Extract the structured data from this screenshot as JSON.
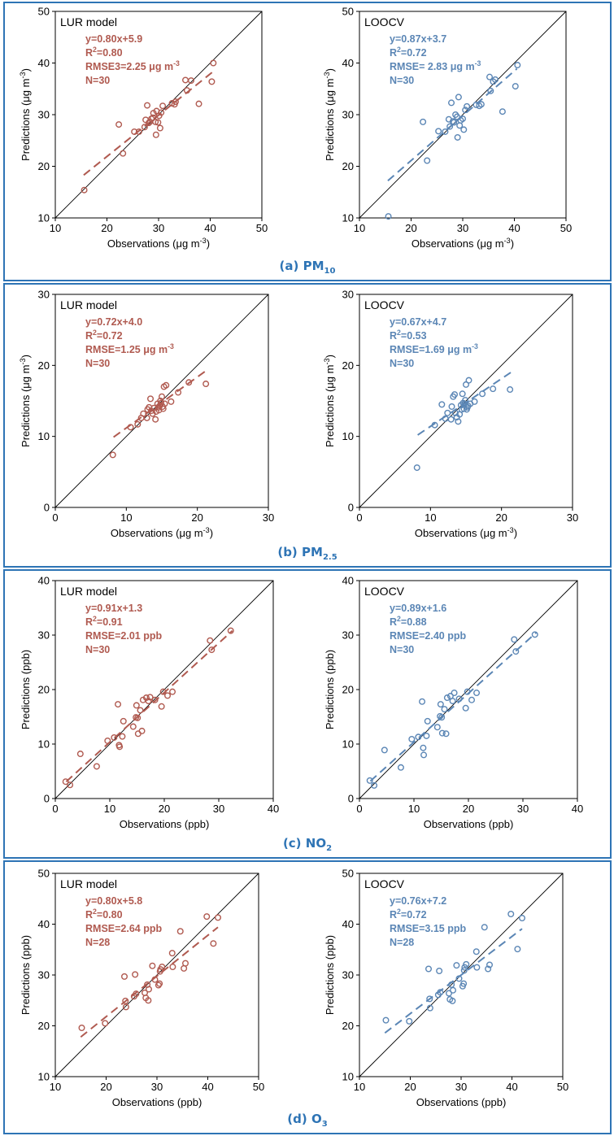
{
  "colors": {
    "border": "#2e74b5",
    "lur": "#b05a50",
    "loocv": "#5b86b5",
    "axis": "#000000"
  },
  "panels": [
    {
      "label_prefix": "(a) PM",
      "label_sub": "10"
    },
    {
      "label_prefix": "(b) PM",
      "label_sub": "2.5"
    },
    {
      "label_prefix": "(c) NO",
      "label_sub": "2"
    },
    {
      "label_prefix": "(d) O",
      "label_sub": "3"
    }
  ],
  "chart_data": [
    {
      "type": "scatter",
      "panel": 0,
      "title": "LUR model",
      "series_color": "lur",
      "xlabel": "Observations (μg m-3)",
      "ylabel": "Predictions (μg m-3)",
      "xlim": [
        10,
        50
      ],
      "ylim": [
        10,
        50
      ],
      "ticks": [
        10,
        20,
        30,
        40,
        50
      ],
      "stats": [
        "y=0.80x+5.9",
        "R2=0.80",
        "RMSE3=2.25 μg m-3",
        "N=30"
      ],
      "fit": {
        "x": [
          15.5,
          40.5
        ],
        "y": [
          18.3,
          38.3
        ]
      },
      "points": [
        [
          15.6,
          15.4
        ],
        [
          22.3,
          28.1
        ],
        [
          23.1,
          22.5
        ],
        [
          25.3,
          26.7
        ],
        [
          26.2,
          26.7
        ],
        [
          27.3,
          27.6
        ],
        [
          27.5,
          29.0
        ],
        [
          27.8,
          31.8
        ],
        [
          28.1,
          28.4
        ],
        [
          28.3,
          28.6
        ],
        [
          28.6,
          29.2
        ],
        [
          28.9,
          29.4
        ],
        [
          29.0,
          30.3
        ],
        [
          29.4,
          28.6
        ],
        [
          29.5,
          26.1
        ],
        [
          29.6,
          30.7
        ],
        [
          29.9,
          28.5
        ],
        [
          30.1,
          29.8
        ],
        [
          30.3,
          27.4
        ],
        [
          30.5,
          30.4
        ],
        [
          30.8,
          31.7
        ],
        [
          32.6,
          32.2
        ],
        [
          33.3,
          32.5
        ],
        [
          33.1,
          32.0
        ],
        [
          35.2,
          36.7
        ],
        [
          35.5,
          34.7
        ],
        [
          36.3,
          36.6
        ],
        [
          37.8,
          32.1
        ],
        [
          40.3,
          36.4
        ],
        [
          40.6,
          40.0
        ]
      ]
    },
    {
      "type": "scatter",
      "panel": 0,
      "title": "LOOCV",
      "series_color": "loocv",
      "xlabel": "Observations (μg m-3)",
      "ylabel": "Predictions (μg m-3)",
      "xlim": [
        10,
        50
      ],
      "ylim": [
        10,
        50
      ],
      "ticks": [
        10,
        20,
        30,
        40,
        50
      ],
      "stats": [
        "y=0.87x+3.7",
        "R2=0.72",
        "RMSE= 2.83 μg m-3",
        "N=30"
      ],
      "fit": {
        "x": [
          15.5,
          40.5
        ],
        "y": [
          17.2,
          38.9
        ]
      },
      "points": [
        [
          15.6,
          10.3
        ],
        [
          22.3,
          28.6
        ],
        [
          23.1,
          21.1
        ],
        [
          25.3,
          26.8
        ],
        [
          26.6,
          26.7
        ],
        [
          27.3,
          29.1
        ],
        [
          27.5,
          27.7
        ],
        [
          27.8,
          32.3
        ],
        [
          28.1,
          28.7
        ],
        [
          28.3,
          28.5
        ],
        [
          28.6,
          30.0
        ],
        [
          28.9,
          29.6
        ],
        [
          29.0,
          25.6
        ],
        [
          29.2,
          33.4
        ],
        [
          29.4,
          27.9
        ],
        [
          29.6,
          28.9
        ],
        [
          30.0,
          29.2
        ],
        [
          30.2,
          27.1
        ],
        [
          30.5,
          30.9
        ],
        [
          30.8,
          31.6
        ],
        [
          32.6,
          31.9
        ],
        [
          33.2,
          31.7
        ],
        [
          33.6,
          32.0
        ],
        [
          35.2,
          37.3
        ],
        [
          35.4,
          34.6
        ],
        [
          35.9,
          36.4
        ],
        [
          37.7,
          30.6
        ],
        [
          40.2,
          35.5
        ],
        [
          40.6,
          39.6
        ],
        [
          36.3,
          36.8
        ]
      ]
    },
    {
      "type": "scatter",
      "panel": 1,
      "title": "LUR model",
      "series_color": "lur",
      "xlabel": "Observations (μg m-3)",
      "ylabel": "Predictions (μg m-3)",
      "xlim": [
        0,
        30
      ],
      "ylim": [
        0,
        30
      ],
      "ticks": [
        0,
        10,
        20,
        30
      ],
      "stats": [
        "y=0.72x+4.0",
        "R2=0.72",
        "RMSE=1.25 μg m-3",
        "N=30"
      ],
      "fit": {
        "x": [
          8.2,
          21.3
        ],
        "y": [
          9.9,
          19.3
        ]
      },
      "points": [
        [
          8.1,
          7.4
        ],
        [
          10.6,
          11.3
        ],
        [
          11.6,
          11.7
        ],
        [
          12.1,
          12.6
        ],
        [
          12.4,
          13.2
        ],
        [
          12.9,
          12.6
        ],
        [
          13.0,
          13.8
        ],
        [
          13.2,
          14.1
        ],
        [
          13.4,
          15.3
        ],
        [
          13.5,
          13.6
        ],
        [
          13.7,
          13.2
        ],
        [
          13.9,
          14.0
        ],
        [
          14.1,
          12.4
        ],
        [
          14.2,
          13.5
        ],
        [
          14.4,
          14.6
        ],
        [
          14.5,
          14.1
        ],
        [
          14.6,
          13.7
        ],
        [
          14.7,
          14.3
        ],
        [
          14.8,
          15.0
        ],
        [
          14.9,
          14.7
        ],
        [
          15.0,
          15.6
        ],
        [
          15.1,
          14.2
        ],
        [
          15.3,
          17.0
        ],
        [
          15.4,
          14.6
        ],
        [
          15.6,
          17.2
        ],
        [
          16.3,
          14.9
        ],
        [
          17.3,
          16.2
        ],
        [
          18.8,
          17.6
        ],
        [
          21.2,
          17.4
        ],
        [
          15.2,
          13.9
        ]
      ]
    },
    {
      "type": "scatter",
      "panel": 1,
      "title": "LOOCV",
      "series_color": "loocv",
      "xlabel": "Observations (μg m-3)",
      "ylabel": "Predictions (μg m-3)",
      "xlim": [
        0,
        30
      ],
      "ylim": [
        0,
        30
      ],
      "ticks": [
        0,
        10,
        20,
        30
      ],
      "stats": [
        "y=0.67x+4.7",
        "R2=0.53",
        "RMSE=1.69 μg m-3",
        "N=30"
      ],
      "fit": {
        "x": [
          8.2,
          21.3
        ],
        "y": [
          10.2,
          19.0
        ]
      },
      "points": [
        [
          8.1,
          5.6
        ],
        [
          10.6,
          11.6
        ],
        [
          11.6,
          14.5
        ],
        [
          12.1,
          12.5
        ],
        [
          12.4,
          13.3
        ],
        [
          12.9,
          12.4
        ],
        [
          13.0,
          14.2
        ],
        [
          13.2,
          15.6
        ],
        [
          13.4,
          15.9
        ],
        [
          13.5,
          13.3
        ],
        [
          13.7,
          12.7
        ],
        [
          13.9,
          12.1
        ],
        [
          14.1,
          13.1
        ],
        [
          14.3,
          14.4
        ],
        [
          14.4,
          13.8
        ],
        [
          14.5,
          16.0
        ],
        [
          14.6,
          14.7
        ],
        [
          14.7,
          13.9
        ],
        [
          14.8,
          14.6
        ],
        [
          14.9,
          15.1
        ],
        [
          15.0,
          17.3
        ],
        [
          15.1,
          13.8
        ],
        [
          15.3,
          14.3
        ],
        [
          15.4,
          17.9
        ],
        [
          15.6,
          14.6
        ],
        [
          16.2,
          14.9
        ],
        [
          17.3,
          16.0
        ],
        [
          18.8,
          16.7
        ],
        [
          21.2,
          16.6
        ],
        [
          15.2,
          14.1
        ]
      ]
    },
    {
      "type": "scatter",
      "panel": 2,
      "title": "LUR model",
      "series_color": "lur",
      "xlabel": "Observations (ppb)",
      "ylabel": "Predictions (ppb)",
      "xlim": [
        0,
        40
      ],
      "ylim": [
        0,
        40
      ],
      "ticks": [
        0,
        10,
        20,
        30,
        40
      ],
      "stats": [
        "y=0.91x+1.3",
        "R2=0.91",
        "RMSE=2.01 ppb",
        "N=30"
      ],
      "fit": {
        "x": [
          2.0,
          32.5
        ],
        "y": [
          3.1,
          30.8
        ]
      },
      "points": [
        [
          1.9,
          3.1
        ],
        [
          2.7,
          2.5
        ],
        [
          4.6,
          8.2
        ],
        [
          7.6,
          5.9
        ],
        [
          9.6,
          10.6
        ],
        [
          10.8,
          11.2
        ],
        [
          11.5,
          17.3
        ],
        [
          11.7,
          9.8
        ],
        [
          11.8,
          9.5
        ],
        [
          12.3,
          11.4
        ],
        [
          12.5,
          14.2
        ],
        [
          14.3,
          13.2
        ],
        [
          14.9,
          17.1
        ],
        [
          15.1,
          14.8
        ],
        [
          15.2,
          11.9
        ],
        [
          15.6,
          16.2
        ],
        [
          15.9,
          12.4
        ],
        [
          16.1,
          18.1
        ],
        [
          16.7,
          18.5
        ],
        [
          17.1,
          17.9
        ],
        [
          17.4,
          18.6
        ],
        [
          18.3,
          18.1
        ],
        [
          19.5,
          16.9
        ],
        [
          19.8,
          19.6
        ],
        [
          20.6,
          18.9
        ],
        [
          21.5,
          19.6
        ],
        [
          28.4,
          29.0
        ],
        [
          28.7,
          27.3
        ],
        [
          32.2,
          30.8
        ],
        [
          14.8,
          14.9
        ]
      ]
    },
    {
      "type": "scatter",
      "panel": 2,
      "title": "LOOCV",
      "series_color": "loocv",
      "xlabel": "Observations (ppb)",
      "ylabel": "Predictions (ppb)",
      "xlim": [
        0,
        40
      ],
      "ylim": [
        0,
        40
      ],
      "ticks": [
        0,
        10,
        20,
        30,
        40
      ],
      "stats": [
        "y=0.89x+1.6",
        "R2=0.88",
        "RMSE=2.40 ppb",
        "N=30"
      ],
      "fit": {
        "x": [
          2.0,
          32.5
        ],
        "y": [
          3.2,
          30.5
        ]
      },
      "points": [
        [
          1.9,
          3.3
        ],
        [
          2.7,
          2.4
        ],
        [
          4.6,
          8.9
        ],
        [
          7.6,
          5.7
        ],
        [
          9.6,
          10.9
        ],
        [
          10.8,
          11.3
        ],
        [
          11.5,
          17.8
        ],
        [
          11.7,
          9.3
        ],
        [
          11.8,
          8.0
        ],
        [
          12.3,
          11.5
        ],
        [
          12.5,
          14.2
        ],
        [
          14.3,
          13.1
        ],
        [
          14.9,
          17.3
        ],
        [
          15.1,
          14.9
        ],
        [
          15.2,
          12.0
        ],
        [
          15.6,
          16.4
        ],
        [
          15.9,
          11.9
        ],
        [
          16.1,
          18.5
        ],
        [
          16.7,
          18.8
        ],
        [
          17.1,
          17.9
        ],
        [
          17.4,
          19.4
        ],
        [
          18.3,
          18.3
        ],
        [
          19.5,
          16.6
        ],
        [
          19.8,
          19.6
        ],
        [
          20.6,
          18.1
        ],
        [
          21.5,
          19.4
        ],
        [
          28.4,
          29.2
        ],
        [
          28.7,
          27.0
        ],
        [
          32.2,
          30.1
        ],
        [
          14.8,
          15.1
        ]
      ]
    },
    {
      "type": "scatter",
      "panel": 3,
      "title": "LUR model",
      "series_color": "lur",
      "xlabel": "Observations (ppb)",
      "ylabel": "Predictions (ppb)",
      "xlim": [
        10,
        50
      ],
      "ylim": [
        10,
        50
      ],
      "ticks": [
        10,
        20,
        30,
        40,
        50
      ],
      "stats": [
        "y=0.80x+5.8",
        "R2=0.80",
        "RMSE=2.64 ppb",
        "N=28"
      ],
      "fit": {
        "x": [
          15.0,
          42.0
        ],
        "y": [
          17.8,
          39.4
        ]
      },
      "points": [
        [
          15.2,
          19.6
        ],
        [
          19.8,
          20.5
        ],
        [
          23.6,
          29.7
        ],
        [
          23.8,
          24.9
        ],
        [
          23.9,
          23.7
        ],
        [
          25.5,
          25.8
        ],
        [
          25.7,
          30.1
        ],
        [
          25.9,
          26.3
        ],
        [
          27.6,
          26.5
        ],
        [
          27.8,
          25.5
        ],
        [
          28.1,
          28.1
        ],
        [
          28.3,
          25.0
        ],
        [
          28.4,
          27.2
        ],
        [
          29.1,
          31.8
        ],
        [
          29.6,
          29.1
        ],
        [
          30.3,
          28.0
        ],
        [
          30.5,
          28.3
        ],
        [
          30.7,
          31.1
        ],
        [
          31.0,
          31.6
        ],
        [
          33.0,
          34.3
        ],
        [
          33.1,
          31.6
        ],
        [
          34.6,
          38.6
        ],
        [
          35.3,
          31.3
        ],
        [
          35.6,
          32.3
        ],
        [
          39.8,
          41.5
        ],
        [
          41.1,
          36.2
        ],
        [
          42.0,
          41.3
        ],
        [
          30.6,
          30.7
        ]
      ]
    },
    {
      "type": "scatter",
      "panel": 3,
      "title": "LOOCV",
      "series_color": "loocv",
      "xlabel": "Observations (ppb)",
      "ylabel": "Predictions (ppb)",
      "xlim": [
        10,
        50
      ],
      "ylim": [
        10,
        50
      ],
      "ticks": [
        10,
        20,
        30,
        40,
        50
      ],
      "stats": [
        "y=0.76x+7.2",
        "R2=0.72",
        "RMSE=3.15 ppb",
        "N=28"
      ],
      "fit": {
        "x": [
          15.0,
          42.0
        ],
        "y": [
          18.6,
          39.1
        ]
      },
      "points": [
        [
          15.2,
          21.1
        ],
        [
          19.8,
          20.9
        ],
        [
          23.6,
          31.2
        ],
        [
          23.8,
          25.3
        ],
        [
          23.9,
          23.5
        ],
        [
          25.5,
          26.1
        ],
        [
          25.7,
          30.8
        ],
        [
          25.9,
          26.6
        ],
        [
          27.6,
          26.4
        ],
        [
          27.8,
          25.2
        ],
        [
          28.1,
          28.1
        ],
        [
          28.3,
          24.9
        ],
        [
          28.4,
          27.0
        ],
        [
          29.1,
          31.9
        ],
        [
          29.6,
          29.3
        ],
        [
          30.3,
          27.8
        ],
        [
          30.5,
          28.3
        ],
        [
          30.7,
          31.5
        ],
        [
          31.0,
          32.1
        ],
        [
          33.0,
          34.6
        ],
        [
          33.1,
          31.5
        ],
        [
          34.6,
          39.4
        ],
        [
          35.3,
          31.2
        ],
        [
          35.6,
          32.0
        ],
        [
          39.8,
          42.0
        ],
        [
          41.1,
          35.1
        ],
        [
          42.0,
          41.2
        ],
        [
          30.6,
          30.9
        ]
      ]
    }
  ]
}
